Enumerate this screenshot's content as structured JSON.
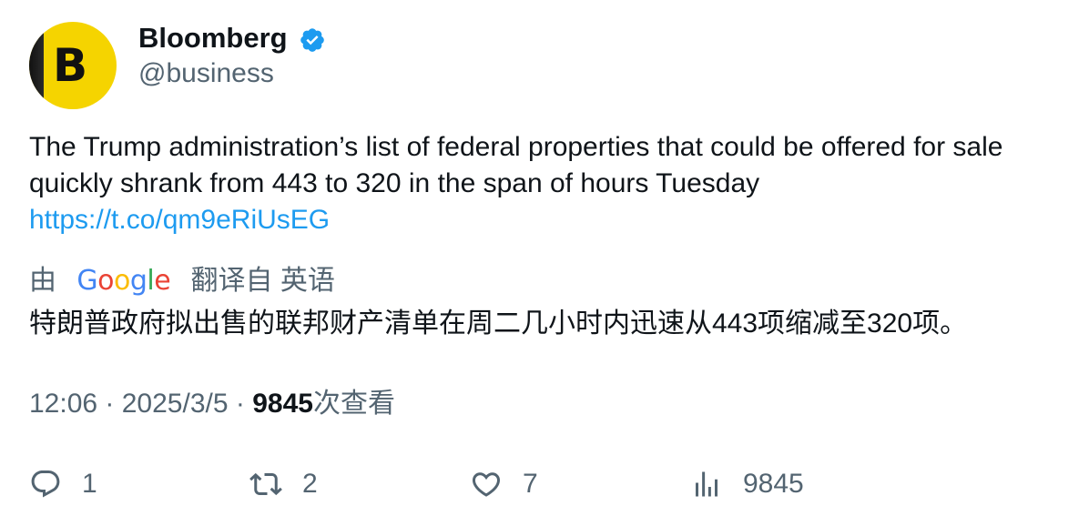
{
  "author": {
    "avatar_letter": "B",
    "name": "Bloomberg",
    "handle": "@business",
    "verified_icon": "verified-badge-icon",
    "verified_color": "#1d9bf0"
  },
  "tweet": {
    "text": "The Trump administration’s list of federal properties that could be offered for sale quickly shrank from 443 to 320 in the span of hours Tuesday",
    "link": "https://t.co/qm9eRiUsEG"
  },
  "translation": {
    "prefix": "由",
    "provider": "Google",
    "suffix": "翻译自 英语",
    "text": "特朗普政府拟出售的联邦财产清单在周二几小时内迅速从443项缩减至320项。"
  },
  "meta": {
    "time": "12:06",
    "separator1": " · ",
    "date": "2025/3/5",
    "separator2": " · ",
    "views_count": "9845",
    "views_label": "次查看"
  },
  "actions": {
    "replies": "1",
    "retweets": "2",
    "likes": "7",
    "views": "9845"
  },
  "colors": {
    "text": "#0f1419",
    "secondary": "#536471",
    "link": "#1d9bf0",
    "avatar_bg": "#f5d400"
  }
}
